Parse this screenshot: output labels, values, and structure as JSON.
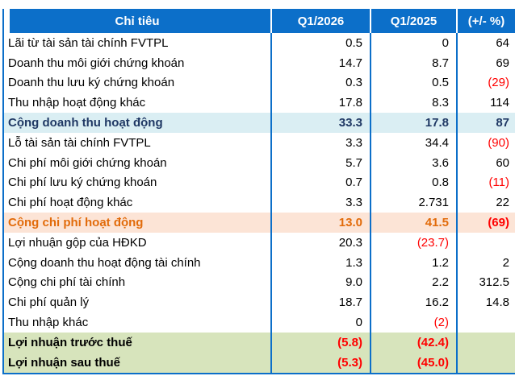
{
  "table": {
    "columns": [
      "Chỉ tiêu",
      "Q1/2026",
      "Q1/2025",
      "(+/- %)"
    ],
    "rows": [
      {
        "label": "Lãi từ tài sản tài chính FVTPL",
        "q1_2026": "0.5",
        "q1_2025": "0",
        "change": "64",
        "type": "normal"
      },
      {
        "label": "Doanh thu môi giới chứng khoán",
        "q1_2026": "14.7",
        "q1_2025": "8.7",
        "change": "69",
        "type": "normal"
      },
      {
        "label": "Doanh thu lưu ký chứng khoán",
        "q1_2026": "0.3",
        "q1_2025": "0.5",
        "change": "(29)",
        "type": "normal"
      },
      {
        "label": "Thu nhập hoạt động khác",
        "q1_2026": "17.8",
        "q1_2025": "8.3",
        "change": "114",
        "type": "normal"
      },
      {
        "label": "Cộng doanh thu hoạt động",
        "q1_2026": "33.3",
        "q1_2025": "17.8",
        "change": "87",
        "type": "blue"
      },
      {
        "label": "Lỗ tài sản tài chính FVTPL",
        "q1_2026": "3.3",
        "q1_2025": "34.4",
        "change": "(90)",
        "type": "normal"
      },
      {
        "label": "Chi phí môi giới chứng khoán",
        "q1_2026": "5.7",
        "q1_2025": "3.6",
        "change": "60",
        "type": "normal"
      },
      {
        "label": "Chi phí lưu ký chứng khoán",
        "q1_2026": "0.7",
        "q1_2025": "0.8",
        "change": "(11)",
        "type": "normal"
      },
      {
        "label": "Chi phí hoạt động khác",
        "q1_2026": "3.3",
        "q1_2025": "2.731",
        "change": "22",
        "type": "normal"
      },
      {
        "label": "Cộng chi phí hoạt động",
        "q1_2026": "13.0",
        "q1_2025": "41.5",
        "change": "(69)",
        "type": "orange"
      },
      {
        "label": "Lợi nhuận gộp của HĐKD",
        "q1_2026": "20.3",
        "q1_2025": "(23.7)",
        "change": "",
        "type": "normal"
      },
      {
        "label": "Cộng doanh thu hoạt động tài chính",
        "q1_2026": "1.3",
        "q1_2025": "1.2",
        "change": "2",
        "type": "normal"
      },
      {
        "label": "Cộng chi phí tài chính",
        "q1_2026": "9.0",
        "q1_2025": "2.2",
        "change": "312.5",
        "type": "normal"
      },
      {
        "label": "Chi phí quản lý",
        "q1_2026": "18.7",
        "q1_2025": "16.2",
        "change": "14.8",
        "type": "normal"
      },
      {
        "label": "Thu nhập khác",
        "q1_2026": "0",
        "q1_2025": "(2)",
        "change": "",
        "type": "normal"
      },
      {
        "label": "Lợi nhuận trước thuế",
        "q1_2026": "(5.8)",
        "q1_2025": "(42.4)",
        "change": "",
        "type": "green"
      },
      {
        "label": "Lợi nhuận sau thuế",
        "q1_2026": "(5.3)",
        "q1_2025": "(45.0)",
        "change": "",
        "type": "green"
      }
    ],
    "colors": {
      "grid": "#0c6fc9",
      "header_bg": "#0c6fc9",
      "header_text": "#ffffff",
      "body_text": "#000000",
      "subtotal_revenue_bg": "#daeef3",
      "subtotal_revenue_text": "#1f3864",
      "subtotal_cost_bg": "#fce4d6",
      "subtotal_cost_text": "#e26b0a",
      "profit_bg": "#d7e4bc",
      "negative_text": "#ff0000"
    }
  }
}
